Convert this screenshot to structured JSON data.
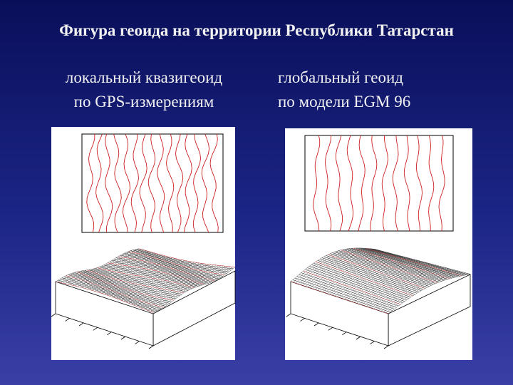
{
  "header": {
    "title": "Фигура геоида на территории Республики Татарстан"
  },
  "panels": [
    {
      "caption": [
        "локальный квазигеоид",
        "по GPS-измерениям"
      ]
    },
    {
      "caption": [
        "глобальный геоид",
        "по модели EGM 96"
      ]
    }
  ]
}
